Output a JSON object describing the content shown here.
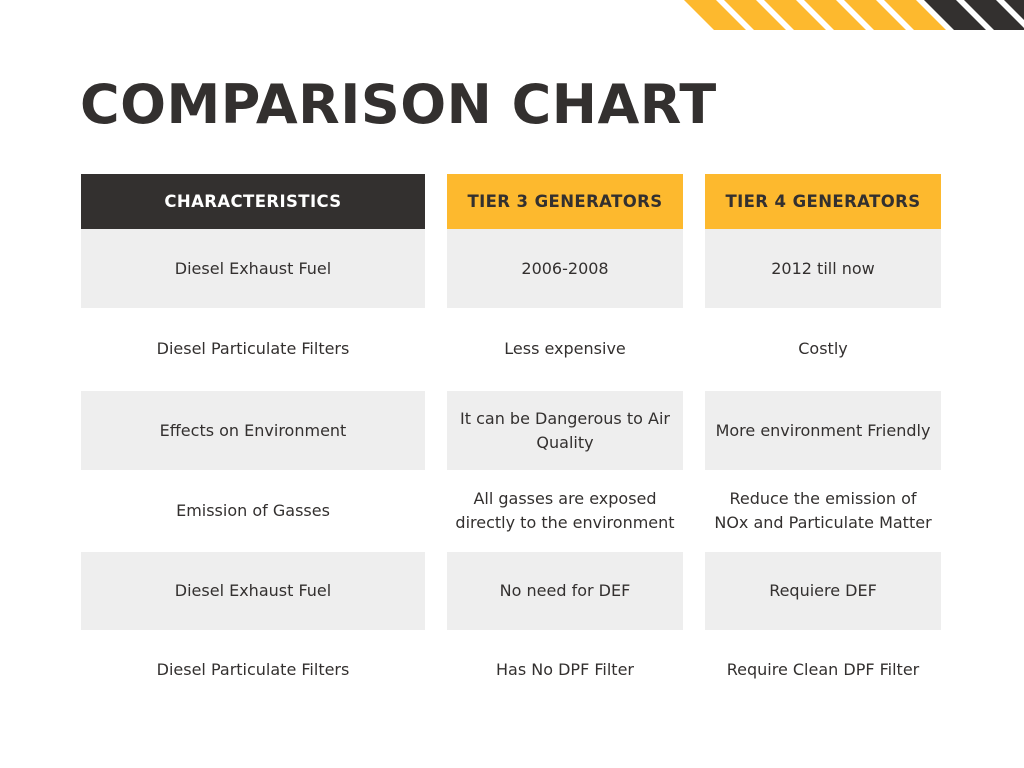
{
  "colors": {
    "accent": "#fdb92e",
    "dark": "#33302f",
    "row_shade": "#eeeeee",
    "text": "#33302f"
  },
  "title": "COMPARISON CHART",
  "headers": [
    "CHARACTERISTICS",
    "TIER 3 GENERATORS",
    "TIER 4 GENERATORS"
  ],
  "rows": [
    [
      "Diesel Exhaust Fuel",
      "2006-2008",
      "2012 till now"
    ],
    [
      "Diesel Particulate Filters",
      "Less expensive",
      "Costly"
    ],
    [
      "Effects on Environment",
      "It can be Dangerous to Air Quality",
      "More environment Friendly"
    ],
    [
      "Emission of Gasses",
      "All gasses are exposed directly to the environment",
      "Reduce the emission of NOx and Particulate Matter"
    ],
    [
      "Diesel Exhaust Fuel",
      "No need for DEF",
      "Requiere DEF"
    ],
    [
      "Diesel Particulate Filters",
      "Has No DPF Filter",
      "Require Clean DPF Filter"
    ]
  ]
}
